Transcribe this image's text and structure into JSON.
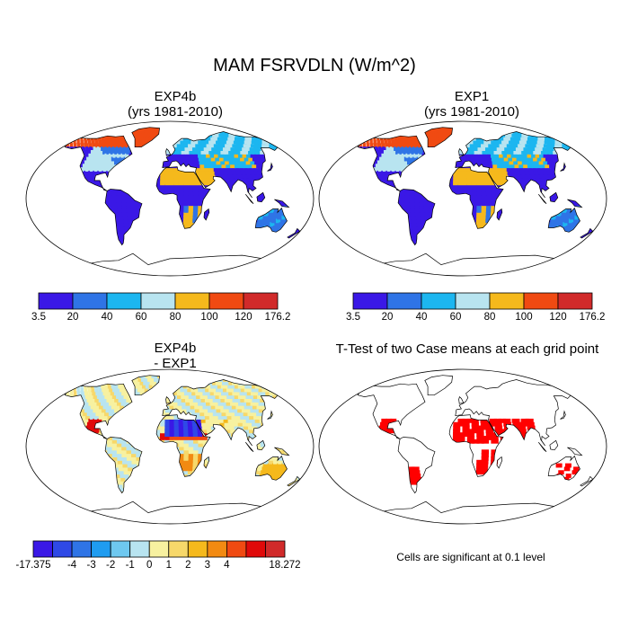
{
  "figure": {
    "title": "MAM FSRVDLN (W/m^2)"
  },
  "panels": {
    "p1": {
      "title_line1": "EXP4b",
      "title_line2": "(yrs 1981-2010)"
    },
    "p2": {
      "title_line1": "EXP1",
      "title_line2": "(yrs 1981-2010)"
    },
    "p3": {
      "title_line1": "EXP4b",
      "title_line2": "- EXP1"
    },
    "p4": {
      "title_line1": "T-Test of two Case means at each grid point",
      "note": "Cells are significant at 0.1 level"
    }
  },
  "colorbars": {
    "abs": {
      "colors": [
        "#3a18e6",
        "#2f74e6",
        "#1cb6f0",
        "#b8e4f0",
        "#f5b91c",
        "#f04a12",
        "#d12a2a"
      ],
      "ticks": [
        "3.5",
        "20",
        "40",
        "60",
        "80",
        "100",
        "120",
        "176.2"
      ]
    },
    "diff": {
      "colors": [
        "#3a18e6",
        "#2f49e6",
        "#2f74e6",
        "#1f9cf0",
        "#6ec8f0",
        "#b8e4f0",
        "#f7f1a0",
        "#f7d86a",
        "#f5b91c",
        "#f28a12",
        "#f04a12",
        "#e00a0a",
        "#d12a2a"
      ],
      "ticks": [
        "-17.375",
        "-4",
        "-3",
        "-2",
        "-1",
        "0",
        "1",
        "2",
        "3",
        "4",
        "18.272"
      ]
    },
    "ttest": {
      "significant_color": "#ff0000"
    }
  }
}
